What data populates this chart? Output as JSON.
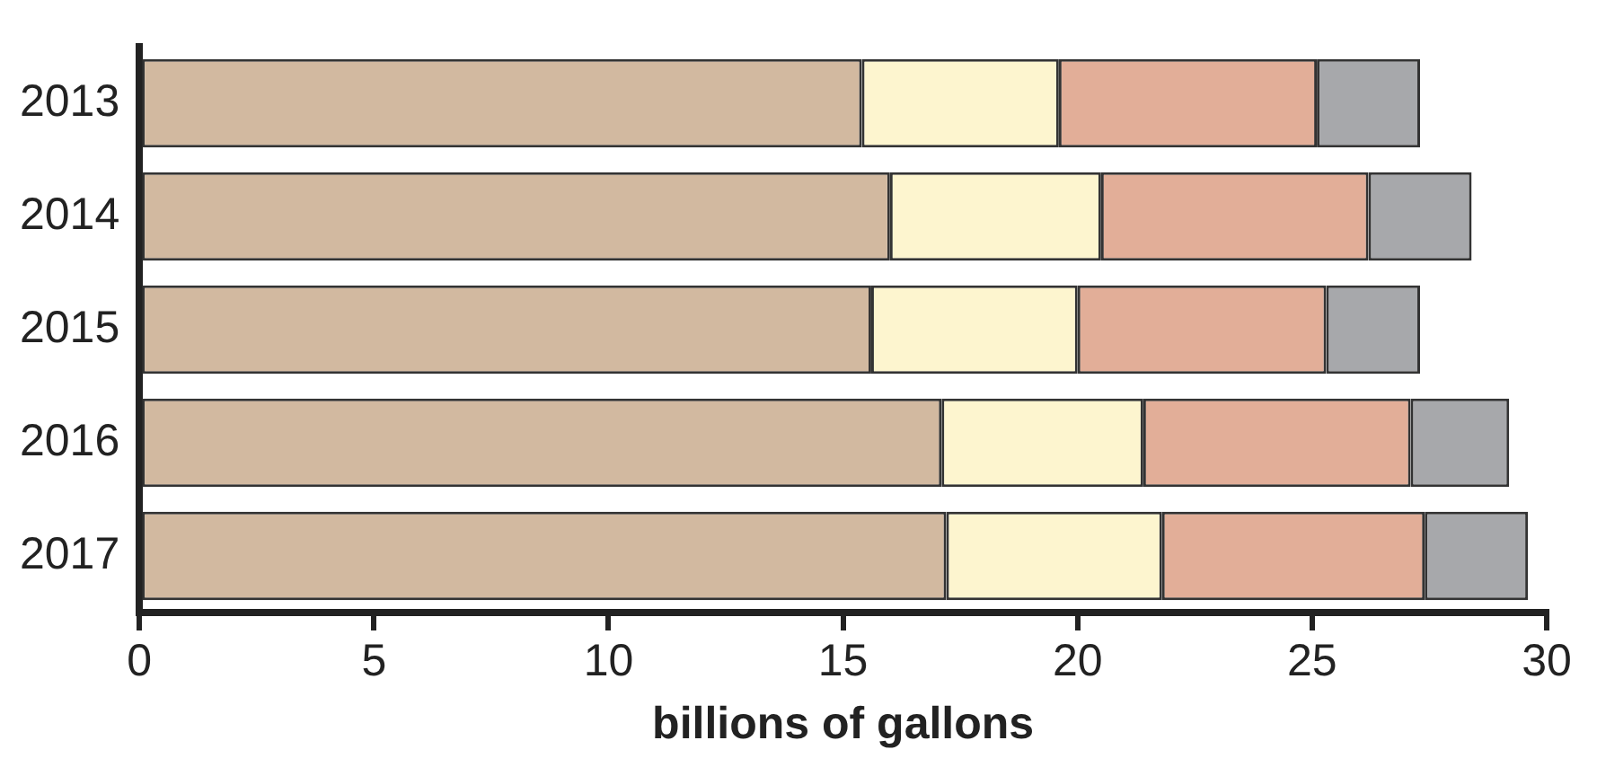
{
  "chart_data": {
    "type": "bar",
    "orientation": "horizontal",
    "stacked": true,
    "xlabel": "billions of gallons",
    "categories": [
      "2013",
      "2014",
      "2015",
      "2016",
      "2017"
    ],
    "series": [
      {
        "color": "#d2b9a0",
        "values": [
          15.4,
          16.0,
          15.6,
          17.1,
          17.2
        ]
      },
      {
        "color": "#fdf5cf",
        "values": [
          4.2,
          4.5,
          4.4,
          4.3,
          4.6
        ]
      },
      {
        "color": "#e2ae98",
        "values": [
          5.5,
          5.7,
          5.3,
          5.7,
          5.6
        ]
      },
      {
        "color": "#a7a8ab",
        "values": [
          2.2,
          2.2,
          2.0,
          2.1,
          2.2
        ]
      }
    ],
    "xlim": [
      0,
      30
    ],
    "xticks": [
      0,
      5,
      10,
      15,
      20,
      25,
      30
    ],
    "grid": false,
    "legend": false
  }
}
